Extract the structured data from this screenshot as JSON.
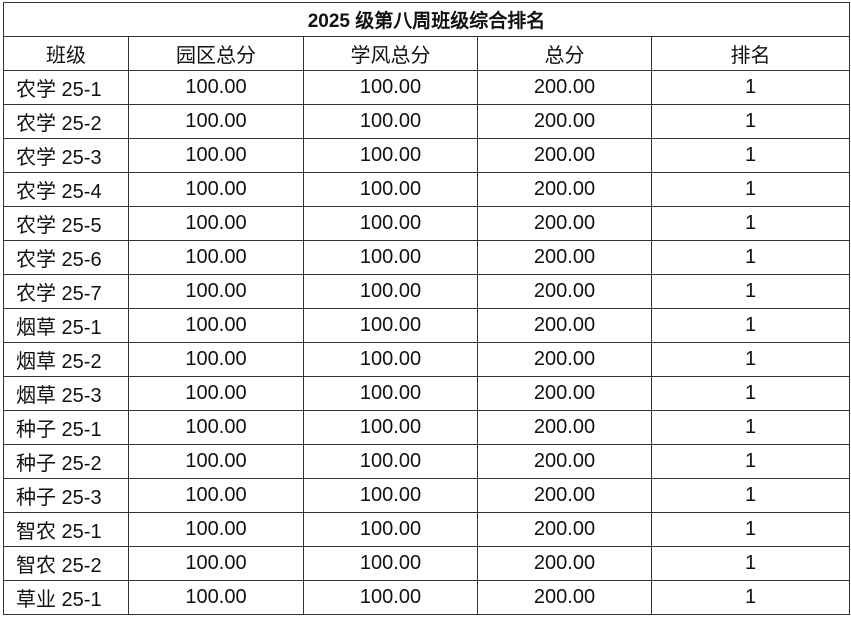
{
  "title": "2025 级第八周班级综合排名",
  "headers": [
    "班级",
    "园区总分",
    "学风总分",
    "总分",
    "排名"
  ],
  "rows": [
    [
      "农学 25-1",
      "100.00",
      "100.00",
      "200.00",
      "1"
    ],
    [
      "农学 25-2",
      "100.00",
      "100.00",
      "200.00",
      "1"
    ],
    [
      "农学 25-3",
      "100.00",
      "100.00",
      "200.00",
      "1"
    ],
    [
      "农学 25-4",
      "100.00",
      "100.00",
      "200.00",
      "1"
    ],
    [
      "农学 25-5",
      "100.00",
      "100.00",
      "200.00",
      "1"
    ],
    [
      "农学 25-6",
      "100.00",
      "100.00",
      "200.00",
      "1"
    ],
    [
      "农学 25-7",
      "100.00",
      "100.00",
      "200.00",
      "1"
    ],
    [
      "烟草 25-1",
      "100.00",
      "100.00",
      "200.00",
      "1"
    ],
    [
      "烟草 25-2",
      "100.00",
      "100.00",
      "200.00",
      "1"
    ],
    [
      "烟草 25-3",
      "100.00",
      "100.00",
      "200.00",
      "1"
    ],
    [
      "种子 25-1",
      "100.00",
      "100.00",
      "200.00",
      "1"
    ],
    [
      "种子 25-2",
      "100.00",
      "100.00",
      "200.00",
      "1"
    ],
    [
      "种子 25-3",
      "100.00",
      "100.00",
      "200.00",
      "1"
    ],
    [
      "智农 25-1",
      "100.00",
      "100.00",
      "200.00",
      "1"
    ],
    [
      "智农 25-2",
      "100.00",
      "100.00",
      "200.00",
      "1"
    ],
    [
      "草业 25-1",
      "100.00",
      "100.00",
      "200.00",
      "1"
    ]
  ]
}
